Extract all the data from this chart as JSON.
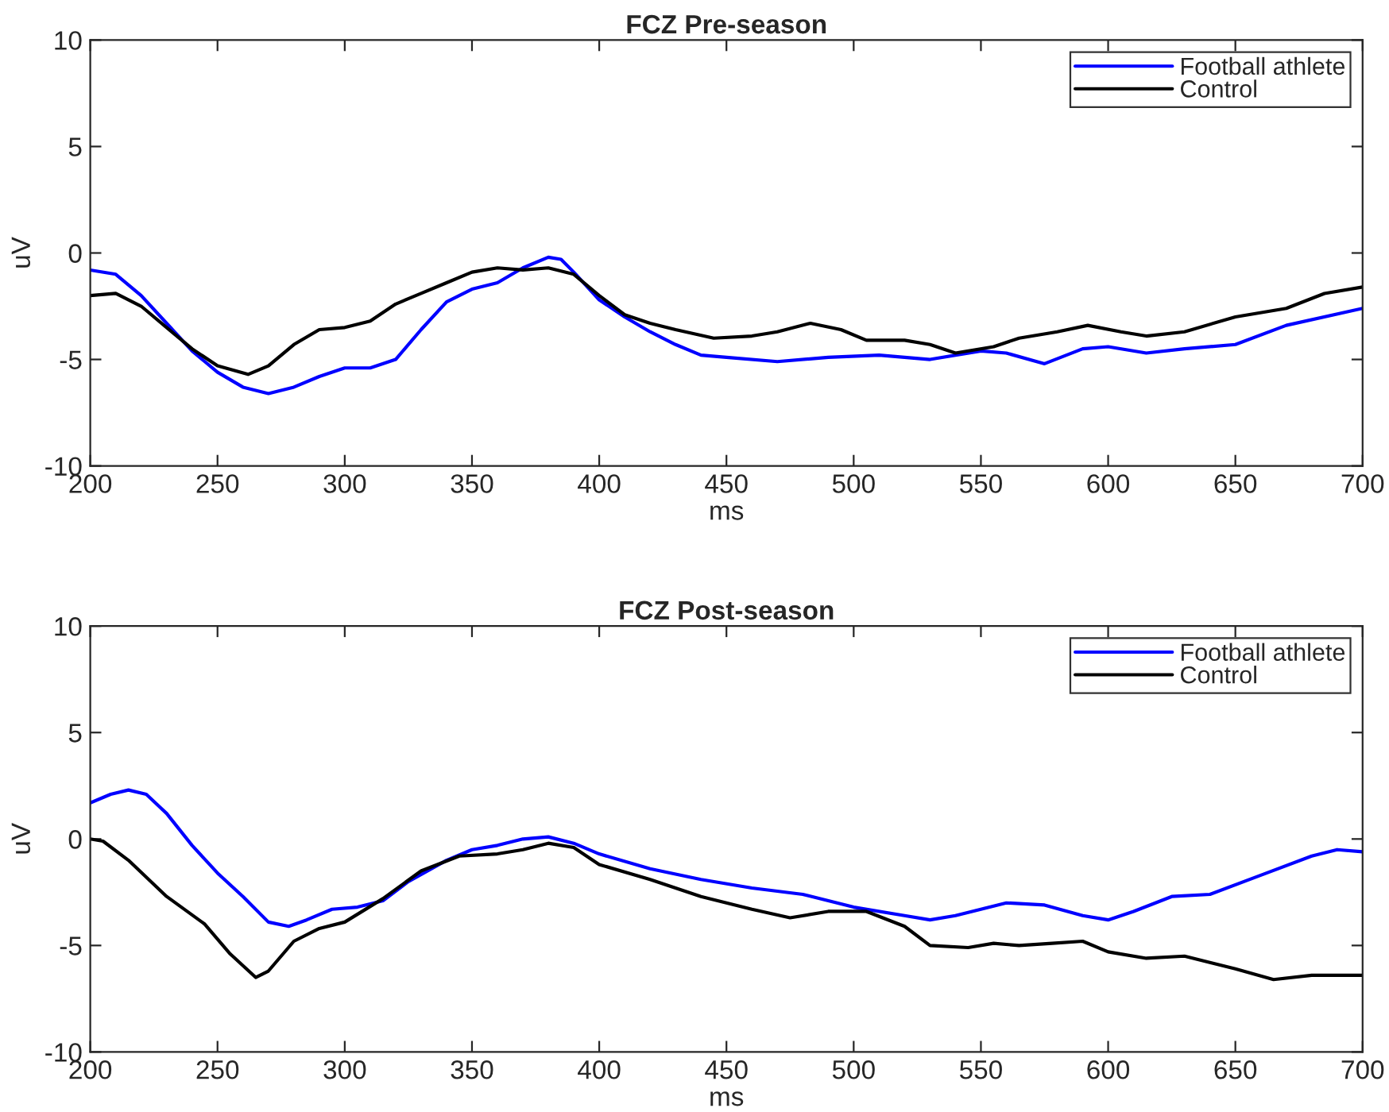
{
  "chart_data": [
    {
      "type": "line",
      "title": "FCZ Pre-season",
      "xlabel": "ms",
      "ylabel": "uV",
      "xlim": [
        200,
        700
      ],
      "ylim": [
        -10,
        10
      ],
      "xticks": [
        200,
        250,
        300,
        350,
        400,
        450,
        500,
        550,
        600,
        650,
        700
      ],
      "yticks": [
        -10,
        -5,
        0,
        5,
        10
      ],
      "legend": "top right",
      "grid": false,
      "series": [
        {
          "name": "Football athlete",
          "color": "#0000ff",
          "x": [
            200,
            210,
            220,
            230,
            240,
            250,
            260,
            270,
            280,
            290,
            300,
            310,
            320,
            330,
            340,
            350,
            360,
            370,
            380,
            385,
            390,
            400,
            410,
            420,
            430,
            440,
            450,
            470,
            490,
            510,
            530,
            550,
            560,
            575,
            590,
            600,
            615,
            630,
            650,
            670,
            700
          ],
          "values": [
            -0.8,
            -1.0,
            -2.0,
            -3.3,
            -4.6,
            -5.6,
            -6.3,
            -6.6,
            -6.3,
            -5.8,
            -5.4,
            -5.4,
            -5.0,
            -3.6,
            -2.3,
            -1.7,
            -1.4,
            -0.7,
            -0.2,
            -0.3,
            -0.9,
            -2.2,
            -3.0,
            -3.7,
            -4.3,
            -4.8,
            -4.9,
            -5.1,
            -4.9,
            -4.8,
            -5.0,
            -4.6,
            -4.7,
            -5.2,
            -4.5,
            -4.4,
            -4.7,
            -4.5,
            -4.3,
            -3.4,
            -2.6
          ]
        },
        {
          "name": "Control",
          "color": "#000000",
          "x": [
            200,
            210,
            220,
            230,
            240,
            250,
            262,
            270,
            280,
            290,
            300,
            310,
            320,
            330,
            340,
            350,
            360,
            370,
            380,
            390,
            400,
            410,
            420,
            430,
            445,
            460,
            470,
            483,
            495,
            505,
            520,
            530,
            540,
            555,
            565,
            580,
            592,
            605,
            615,
            630,
            650,
            670,
            685,
            700
          ],
          "values": [
            -2.0,
            -1.9,
            -2.5,
            -3.5,
            -4.5,
            -5.3,
            -5.7,
            -5.3,
            -4.3,
            -3.6,
            -3.5,
            -3.2,
            -2.4,
            -1.9,
            -1.4,
            -0.9,
            -0.7,
            -0.8,
            -0.7,
            -1.0,
            -2.0,
            -2.9,
            -3.3,
            -3.6,
            -4.0,
            -3.9,
            -3.7,
            -3.3,
            -3.6,
            -4.1,
            -4.1,
            -4.3,
            -4.7,
            -4.4,
            -4.0,
            -3.7,
            -3.4,
            -3.7,
            -3.9,
            -3.7,
            -3.0,
            -2.6,
            -1.9,
            -1.6
          ]
        }
      ]
    },
    {
      "type": "line",
      "title": "FCZ Post-season",
      "xlabel": "ms",
      "ylabel": "uV",
      "xlim": [
        200,
        700
      ],
      "ylim": [
        -10,
        10
      ],
      "xticks": [
        200,
        250,
        300,
        350,
        400,
        450,
        500,
        550,
        600,
        650,
        700
      ],
      "yticks": [
        -10,
        -5,
        0,
        5,
        10
      ],
      "legend": "top right",
      "grid": false,
      "series": [
        {
          "name": "Football athlete",
          "color": "#0000ff",
          "x": [
            200,
            208,
            215,
            222,
            230,
            240,
            250,
            260,
            270,
            278,
            285,
            295,
            305,
            315,
            325,
            340,
            350,
            360,
            370,
            380,
            390,
            400,
            420,
            440,
            460,
            480,
            500,
            520,
            530,
            540,
            560,
            575,
            590,
            600,
            610,
            625,
            640,
            660,
            680,
            690,
            700
          ],
          "values": [
            1.7,
            2.1,
            2.3,
            2.1,
            1.2,
            -0.3,
            -1.6,
            -2.7,
            -3.9,
            -4.1,
            -3.8,
            -3.3,
            -3.2,
            -2.9,
            -2.0,
            -1.0,
            -0.5,
            -0.3,
            0.0,
            0.1,
            -0.2,
            -0.7,
            -1.4,
            -1.9,
            -2.3,
            -2.6,
            -3.2,
            -3.6,
            -3.8,
            -3.6,
            -3.0,
            -3.1,
            -3.6,
            -3.8,
            -3.4,
            -2.7,
            -2.6,
            -1.7,
            -0.8,
            -0.5,
            -0.6
          ]
        },
        {
          "name": "Control",
          "color": "#000000",
          "x": [
            200,
            205,
            215,
            230,
            245,
            255,
            265,
            270,
            280,
            290,
            300,
            315,
            330,
            345,
            360,
            370,
            380,
            390,
            400,
            420,
            440,
            460,
            475,
            490,
            505,
            520,
            530,
            545,
            555,
            565,
            578,
            590,
            600,
            615,
            630,
            650,
            665,
            680,
            700
          ],
          "values": [
            0.0,
            -0.1,
            -1.0,
            -2.7,
            -4.0,
            -5.4,
            -6.5,
            -6.2,
            -4.8,
            -4.2,
            -3.9,
            -2.8,
            -1.5,
            -0.8,
            -0.7,
            -0.5,
            -0.2,
            -0.4,
            -1.2,
            -1.9,
            -2.7,
            -3.3,
            -3.7,
            -3.4,
            -3.4,
            -4.1,
            -5.0,
            -5.1,
            -4.9,
            -5.0,
            -4.9,
            -4.8,
            -5.3,
            -5.6,
            -5.5,
            -6.1,
            -6.6,
            -6.4,
            -6.4
          ]
        }
      ]
    }
  ]
}
